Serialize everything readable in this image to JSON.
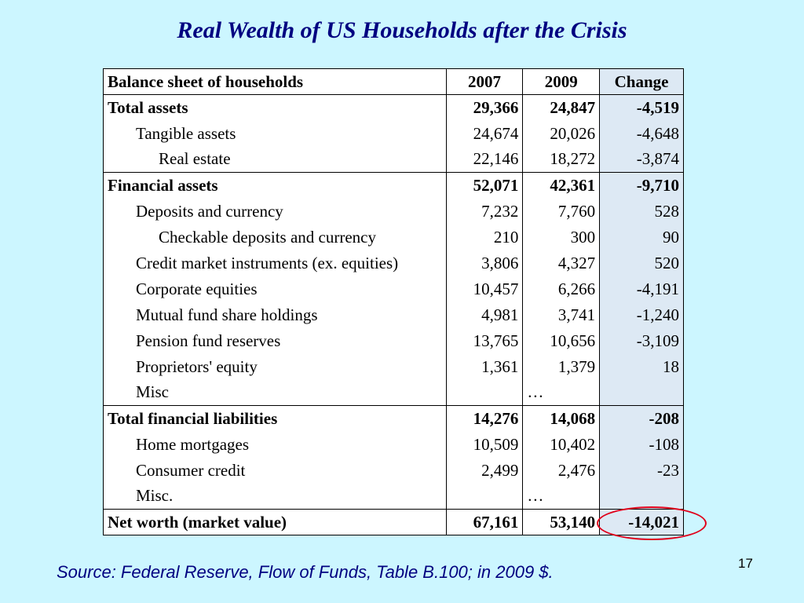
{
  "title": "Real Wealth of US Households after the Crisis",
  "table": {
    "headers": [
      "Balance sheet of households",
      "2007",
      "2009",
      "Change"
    ],
    "rows": [
      {
        "label": "Total assets",
        "v2007": "29,366",
        "v2009": "24,847",
        "change": "-4,519"
      },
      {
        "label": "Tangible assets",
        "v2007": "24,674",
        "v2009": "20,026",
        "change": "-4,648"
      },
      {
        "label": "Real estate",
        "v2007": "22,146",
        "v2009": "18,272",
        "change": "-3,874"
      },
      {
        "label": "Financial assets",
        "v2007": "52,071",
        "v2009": "42,361",
        "change": "-9,710"
      },
      {
        "label": "Deposits and currency",
        "v2007": "7,232",
        "v2009": "7,760",
        "change": "528"
      },
      {
        "label": "Checkable deposits and currency",
        "v2007": "210",
        "v2009": "300",
        "change": "90"
      },
      {
        "label": "Credit market instruments (ex. equities)",
        "v2007": "3,806",
        "v2009": "4,327",
        "change": "520"
      },
      {
        "label": "Corporate equities",
        "v2007": "10,457",
        "v2009": "6,266",
        "change": "-4,191"
      },
      {
        "label": "Mutual fund share holdings",
        "v2007": "4,981",
        "v2009": "3,741",
        "change": "-1,240"
      },
      {
        "label": "Pension fund reserves",
        "v2007": "13,765",
        "v2009": "10,656",
        "change": "-3,109"
      },
      {
        "label": "Proprietors' equity",
        "v2007": "1,361",
        "v2009": "1,379",
        "change": "18"
      },
      {
        "label": "Misc",
        "v2007": "",
        "v2009": "…",
        "change": ""
      },
      {
        "label": "Total financial liabilities",
        "v2007": "14,276",
        "v2009": "14,068",
        "change": "-208"
      },
      {
        "label": "Home mortgages",
        "v2007": "10,509",
        "v2009": "10,402",
        "change": "-108"
      },
      {
        "label": "Consumer credit",
        "v2007": "2,499",
        "v2009": "2,476",
        "change": "-23"
      },
      {
        "label": "Misc.",
        "v2007": "",
        "v2009": "…",
        "change": ""
      },
      {
        "label": "Net worth (market value)",
        "v2007": "67,161",
        "v2009": "53,140",
        "change": "-14,021"
      }
    ]
  },
  "source": "Source: Federal Reserve, Flow of Funds, Table B.100; in 2009 $.",
  "page_number": "17",
  "colors": {
    "background": "#ccf6ff",
    "title": "#000080",
    "change_column": "#dde9f4",
    "highlight_circle": "#e0001a"
  }
}
